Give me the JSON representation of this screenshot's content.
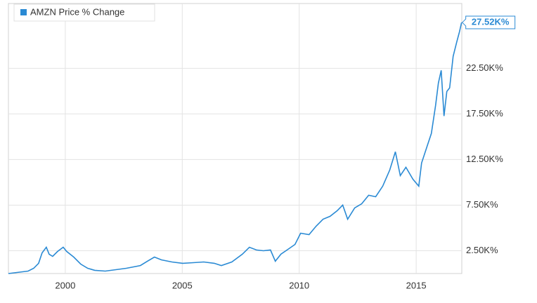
{
  "chart_data": {
    "type": "line",
    "series": [
      {
        "name": "AMZN Price % Change",
        "color": "#2a8ad4",
        "x": [
          1997.57,
          1998.41,
          1998.65,
          1998.86,
          1999.01,
          1999.19,
          1999.31,
          1999.46,
          1999.67,
          1999.91,
          2000.06,
          2000.36,
          2000.66,
          2000.96,
          2001.26,
          2001.71,
          2002.16,
          2002.61,
          2003.21,
          2003.51,
          2003.81,
          2004.11,
          2004.56,
          2005.02,
          2005.47,
          2005.92,
          2006.37,
          2006.67,
          2007.12,
          2007.57,
          2007.87,
          2008.17,
          2008.47,
          2008.77,
          2008.98,
          2009.22,
          2009.52,
          2009.82,
          2010.06,
          2010.42,
          2010.72,
          2011.02,
          2011.32,
          2011.62,
          2011.86,
          2012.07,
          2012.37,
          2012.67,
          2012.97,
          2013.27,
          2013.57,
          2013.87,
          2014.11,
          2014.32,
          2014.56,
          2014.86,
          2015.11,
          2015.23,
          2015.47,
          2015.65,
          2015.83,
          2015.95,
          2016.07,
          2016.19,
          2016.31,
          2016.43,
          2016.58,
          2016.73,
          2016.85,
          2016.94
        ],
        "values": [
          0,
          270,
          580,
          1120,
          2270,
          2880,
          2120,
          1880,
          2420,
          2880,
          2420,
          1810,
          1040,
          580,
          350,
          270,
          420,
          580,
          880,
          1350,
          1810,
          1500,
          1270,
          1120,
          1190,
          1270,
          1120,
          880,
          1270,
          2120,
          2880,
          2580,
          2500,
          2580,
          1350,
          2120,
          2650,
          3190,
          4420,
          4270,
          5190,
          5960,
          6270,
          6880,
          7500,
          5960,
          7190,
          7650,
          8580,
          8420,
          9580,
          11350,
          13350,
          10730,
          11650,
          10350,
          9580,
          12120,
          13960,
          15350,
          18420,
          20880,
          22270,
          17270,
          19960,
          20350,
          23810,
          25350,
          26500,
          27520
        ],
        "value_labels": [
          null,
          null,
          null,
          null,
          null,
          null,
          null,
          null,
          null,
          null,
          null,
          null,
          null,
          null,
          null,
          null,
          null,
          null,
          null,
          null,
          null,
          null,
          null,
          null,
          null,
          null,
          null,
          null,
          null,
          null,
          null,
          null,
          null,
          null,
          null,
          null,
          null,
          null,
          null,
          null,
          null,
          null,
          null,
          null,
          null,
          null,
          null,
          null,
          null,
          null,
          null,
          null,
          null,
          null,
          null,
          null,
          null,
          null,
          null,
          null,
          null,
          null,
          null,
          null,
          null,
          null,
          null,
          null,
          null,
          "27.52K%"
        ]
      }
    ],
    "xlim": [
      1997.57,
      2016.95
    ],
    "xticks": [
      2000,
      2005,
      2010,
      2015
    ],
    "ylim": [
      0,
      29600
    ],
    "yticks": [
      {
        "value": 2500,
        "label": "2.50K%"
      },
      {
        "value": 7500,
        "label": "7.50K%"
      },
      {
        "value": 12500,
        "label": "12.50K%"
      },
      {
        "value": 17500,
        "label": "17.50K%"
      },
      {
        "value": 22500,
        "label": "22.50K%"
      }
    ],
    "grid": true,
    "legend": "upper left"
  }
}
